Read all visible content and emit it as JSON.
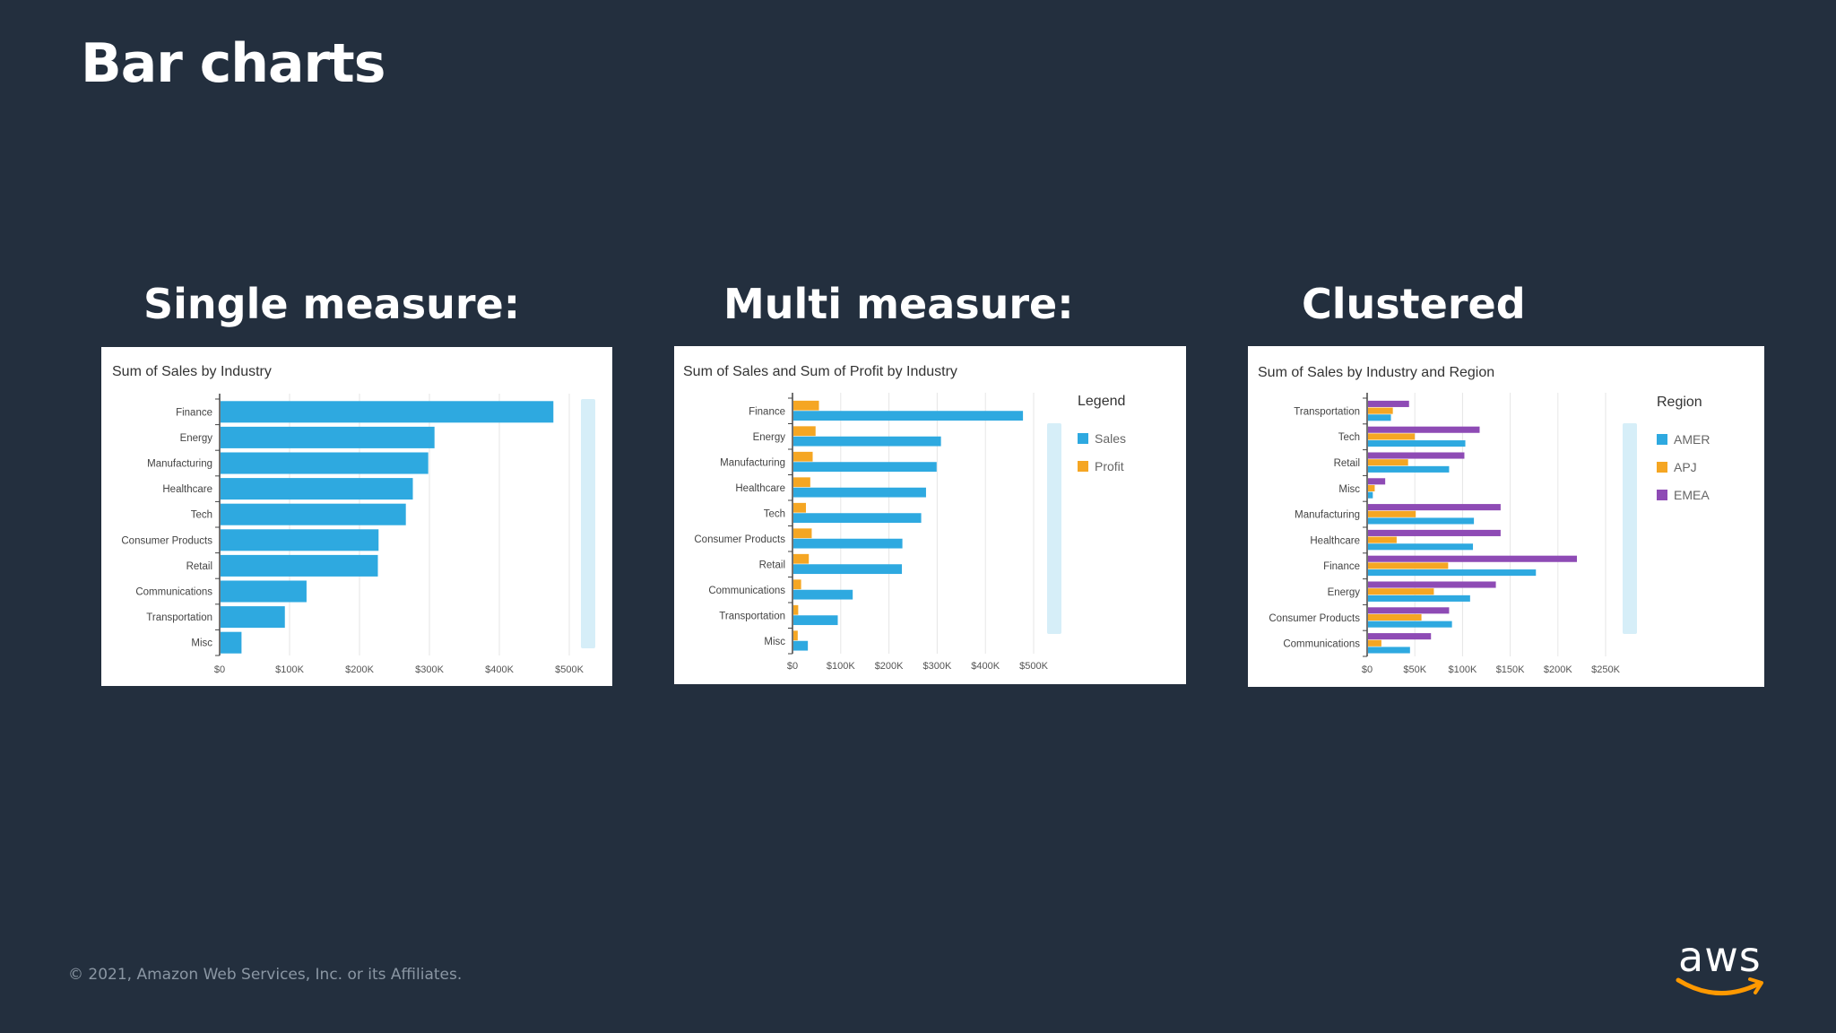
{
  "slide": {
    "title": "Bar charts",
    "footer": "© 2021, Amazon Web Services, Inc. or its Affiliates.",
    "logo_text": "aws"
  },
  "sections": [
    {
      "heading": "Single measure:"
    },
    {
      "heading": "Multi measure:"
    },
    {
      "heading": "Clustered"
    }
  ],
  "colors": {
    "background": "#232f3e",
    "sales": "#2ea9e0",
    "profit": "#f5a623",
    "amer": "#2ea9e0",
    "apj": "#f5a623",
    "emea": "#8e4bb5",
    "scroll": "#d6eef8",
    "aws_smile": "#ff9900"
  },
  "chart_data": [
    {
      "type": "bar",
      "orientation": "horizontal",
      "title": "Sum of Sales by Industry",
      "categories": [
        "Finance",
        "Energy",
        "Manufacturing",
        "Healthcare",
        "Tech",
        "Consumer Products",
        "Retail",
        "Communications",
        "Transportation",
        "Misc"
      ],
      "series": [
        {
          "values": [
            476000,
            306000,
            297000,
            275000,
            265000,
            226000,
            225000,
            123000,
            92000,
            30000
          ],
          "color": "#2ea9e0"
        }
      ],
      "xticks": [
        "$0",
        "$100K",
        "$200K",
        "$300K",
        "$400K",
        "$500K"
      ],
      "xlim": [
        0,
        500000
      ],
      "grid": true,
      "legend": null
    },
    {
      "type": "bar",
      "orientation": "horizontal",
      "title": "Sum of Sales and Sum of Profit by Industry",
      "categories": [
        "Finance",
        "Energy",
        "Manufacturing",
        "Healthcare",
        "Tech",
        "Consumer Products",
        "Retail",
        "Communications",
        "Transportation",
        "Misc"
      ],
      "series": [
        {
          "name": "Profit",
          "values": [
            53000,
            46000,
            40000,
            35000,
            26000,
            38000,
            32000,
            16000,
            10000,
            9000
          ],
          "color": "#f5a623"
        },
        {
          "name": "Sales",
          "values": [
            476000,
            306000,
            297000,
            275000,
            265000,
            226000,
            225000,
            123000,
            92000,
            30000
          ],
          "color": "#2ea9e0"
        }
      ],
      "xticks": [
        "$0",
        "$100K",
        "$200K",
        "$300K",
        "$400K",
        "$500K"
      ],
      "xlim": [
        0,
        500000
      ],
      "grid": true,
      "legend": {
        "title": "Legend",
        "position": "right",
        "items": [
          "Sales",
          "Profit"
        ]
      }
    },
    {
      "type": "bar",
      "orientation": "horizontal",
      "title": "Sum of Sales by Industry and Region",
      "categories": [
        "Transportation",
        "Tech",
        "Retail",
        "Misc",
        "Manufacturing",
        "Healthcare",
        "Finance",
        "Energy",
        "Consumer Products",
        "Communications"
      ],
      "series": [
        {
          "name": "EMEA",
          "values": [
            43000,
            117000,
            101000,
            18000,
            139000,
            139000,
            219000,
            134000,
            85000,
            66000
          ],
          "color": "#8e4bb5"
        },
        {
          "name": "APJ",
          "values": [
            26000,
            49000,
            42000,
            7000,
            50000,
            30000,
            84000,
            69000,
            56000,
            14000
          ],
          "color": "#f5a623"
        },
        {
          "name": "AMER",
          "values": [
            24000,
            102000,
            85000,
            5000,
            111000,
            110000,
            176000,
            107000,
            88000,
            44000
          ],
          "color": "#2ea9e0"
        }
      ],
      "xticks": [
        "$0",
        "$50K",
        "$100K",
        "$150K",
        "$200K",
        "$250K"
      ],
      "xlim": [
        0,
        250000
      ],
      "grid": true,
      "legend": {
        "title": "Region",
        "position": "right",
        "items": [
          "AMER",
          "APJ",
          "EMEA"
        ]
      }
    }
  ]
}
